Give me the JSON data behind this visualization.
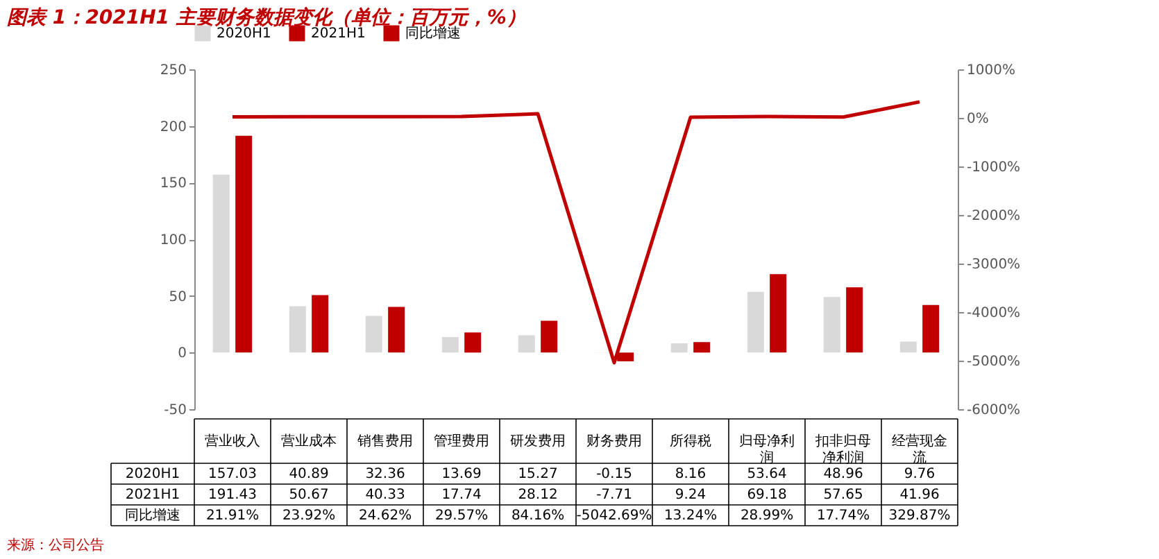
{
  "chart_data": {
    "type": "bar",
    "title": "图表 1：2021H1 主要财务数据变化（单位：百万元，%）",
    "categories": [
      "营业收入",
      "营业成本",
      "销售费用",
      "管理费用",
      "研发费用",
      "财务费用",
      "所得税",
      "归母净利润",
      "扣非归母净利润",
      "经营现金流"
    ],
    "series": [
      {
        "name": "2020H1",
        "color": "#d9d9d9",
        "values": [
          157.03,
          40.89,
          32.36,
          13.69,
          15.27,
          -0.15,
          8.16,
          53.64,
          48.96,
          9.76
        ],
        "value_labels": [
          "157.03",
          "40.89",
          "32.36",
          "13.69",
          "15.27",
          "-0.15",
          "8.16",
          "53.64",
          "48.96",
          "9.76"
        ]
      },
      {
        "name": "2021H1",
        "color": "#c00000",
        "values": [
          191.43,
          50.67,
          40.33,
          17.74,
          28.12,
          -7.71,
          9.24,
          69.18,
          57.65,
          41.96
        ],
        "value_labels": [
          "191.43",
          "50.67",
          "40.33",
          "17.74",
          "28.12",
          "-7.71",
          "9.24",
          "69.18",
          "57.65",
          "41.96"
        ]
      },
      {
        "name": "同比增速",
        "type": "line",
        "axis": "y2",
        "color": "#c00000",
        "values": [
          21.91,
          23.92,
          24.62,
          29.57,
          84.16,
          -5042.69,
          13.24,
          28.99,
          17.74,
          329.87
        ],
        "value_labels": [
          "21.91%",
          "23.92%",
          "24.62%",
          "29.57%",
          "84.16%",
          "-5042.69%",
          "13.24%",
          "28.99%",
          "17.74%",
          "329.87%"
        ]
      }
    ],
    "ylim": [
      -50,
      250
    ],
    "yticks": [
      -50,
      0,
      50,
      100,
      150,
      200,
      250
    ],
    "y2lim": [
      -6000,
      1000
    ],
    "y2ticks": [
      {
        "value": -6000,
        "label": "-6000%"
      },
      {
        "value": -5000,
        "label": "-5000%"
      },
      {
        "value": -4000,
        "label": "-4000%"
      },
      {
        "value": -3000,
        "label": "-3000%"
      },
      {
        "value": -2000,
        "label": "-2000%"
      },
      {
        "value": -1000,
        "label": "-1000%"
      },
      {
        "value": 0,
        "label": "0%"
      },
      {
        "value": 1000,
        "label": "1000%"
      }
    ],
    "grid": false,
    "legend": "top",
    "tick_labels": "y",
    "annotations": [
      "来源：公司公告"
    ]
  }
}
